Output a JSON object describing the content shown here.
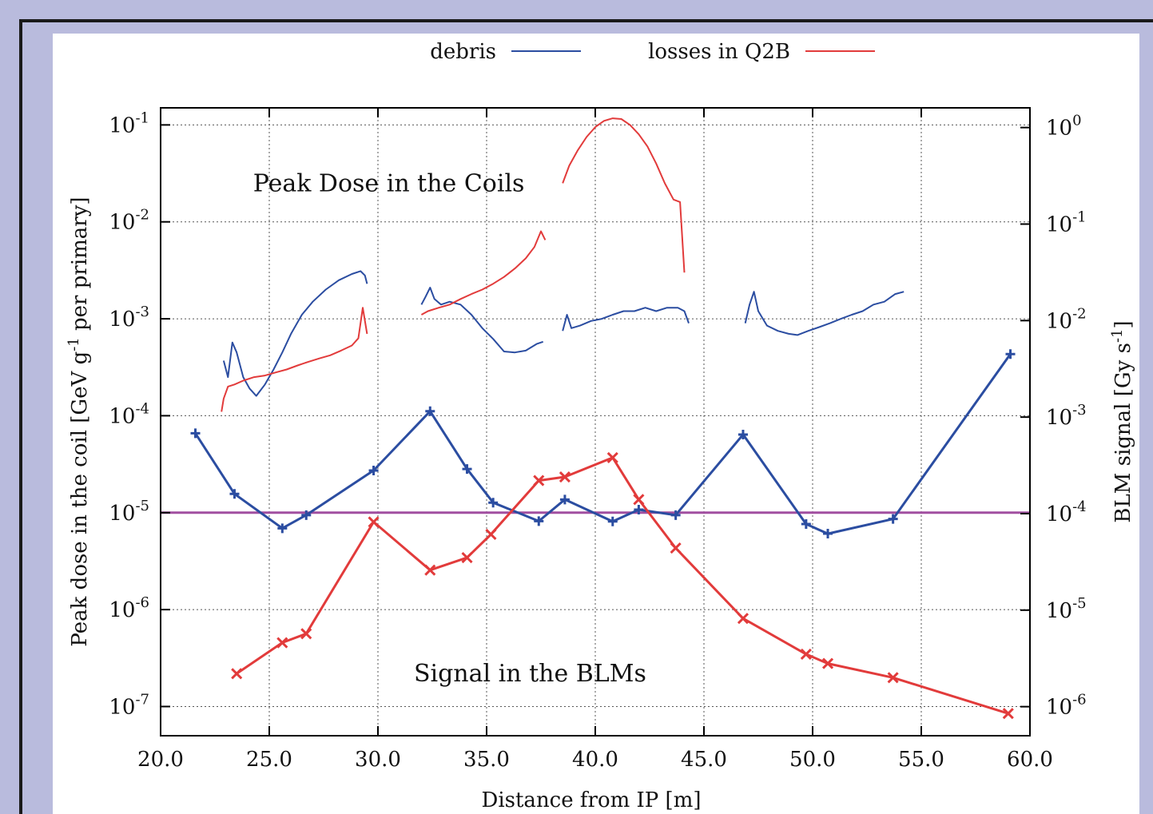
{
  "chart_data": {
    "type": "line",
    "xlabel": "Distance from IP [m]",
    "ylabel_left_text": "Peak dose in the coil [GeV g",
    "ylabel_left_sup": "-1",
    "ylabel_left_tail": " per primary]",
    "ylabel_right_text": "BLM signal [Gy s",
    "ylabel_right_sup": "-1",
    "ylabel_right_tail": "]",
    "xlim": [
      20.0,
      60.0
    ],
    "ylim_left": [
      5e-08,
      0.15
    ],
    "ylim_right": [
      5e-07,
      1.6
    ],
    "y_scale": "log",
    "grid": true,
    "legend": {
      "position": "top-center",
      "entries": [
        {
          "label": "debris",
          "color": "#2b4da1"
        },
        {
          "label": "losses in Q2B",
          "color": "#e23b3b"
        }
      ]
    },
    "x_ticks": [
      "20.0",
      "25.0",
      "30.0",
      "35.0",
      "40.0",
      "45.0",
      "50.0",
      "55.0",
      "60.0"
    ],
    "y_ticks_left": [
      {
        "base": "10",
        "exp": "-1",
        "value": 0.1
      },
      {
        "base": "10",
        "exp": "-2",
        "value": 0.01
      },
      {
        "base": "10",
        "exp": "-3",
        "value": 0.001
      },
      {
        "base": "10",
        "exp": "-4",
        "value": 0.0001
      },
      {
        "base": "10",
        "exp": "-5",
        "value": 1e-05
      },
      {
        "base": "10",
        "exp": "-6",
        "value": 1e-06
      },
      {
        "base": "10",
        "exp": "-7",
        "value": 1e-07
      }
    ],
    "y_ticks_right": [
      {
        "base": "10",
        "exp": "0",
        "value": 1
      },
      {
        "base": "10",
        "exp": "-1",
        "value": 0.1
      },
      {
        "base": "10",
        "exp": "-2",
        "value": 0.01
      },
      {
        "base": "10",
        "exp": "-3",
        "value": 0.001
      },
      {
        "base": "10",
        "exp": "-4",
        "value": 0.0001
      },
      {
        "base": "10",
        "exp": "-5",
        "value": 1e-05
      },
      {
        "base": "10",
        "exp": "-6",
        "value": 1e-06
      }
    ],
    "annotations": [
      {
        "text": "Peak Dose in the Coils",
        "x": 30.5,
        "y": 0.025
      },
      {
        "text": "Signal in the BLMs",
        "x": 37.0,
        "y": 2.2e-07
      }
    ],
    "threshold": {
      "value": 1e-05,
      "color": "#a14fa0"
    },
    "series": [
      {
        "name": "debris",
        "axis": "left",
        "kind": "coil",
        "color": "#2b4da1",
        "segments": [
          [
            [
              22.9,
              0.00037
            ],
            [
              23.1,
              0.00025
            ],
            [
              23.3,
              0.00057
            ],
            [
              23.5,
              0.00045
            ],
            [
              23.8,
              0.00025
            ],
            [
              24.1,
              0.00019
            ],
            [
              24.4,
              0.00016
            ],
            [
              24.8,
              0.00021
            ],
            [
              25.2,
              0.0003
            ],
            [
              25.6,
              0.00045
            ],
            [
              26.0,
              0.0007
            ],
            [
              26.5,
              0.0011
            ],
            [
              27.0,
              0.0015
            ],
            [
              27.6,
              0.002
            ],
            [
              28.2,
              0.0025
            ],
            [
              28.8,
              0.0029
            ],
            [
              29.2,
              0.0031
            ],
            [
              29.4,
              0.0028
            ],
            [
              29.5,
              0.0023
            ]
          ],
          [
            [
              32.0,
              0.0014
            ],
            [
              32.2,
              0.0017
            ],
            [
              32.4,
              0.0021
            ],
            [
              32.6,
              0.0016
            ],
            [
              32.9,
              0.0014
            ],
            [
              33.3,
              0.0015
            ],
            [
              33.8,
              0.0014
            ],
            [
              34.3,
              0.0011
            ],
            [
              34.8,
              0.0008
            ],
            [
              35.3,
              0.00062
            ],
            [
              35.8,
              0.00046
            ],
            [
              36.3,
              0.00045
            ],
            [
              36.8,
              0.00047
            ],
            [
              37.3,
              0.00055
            ],
            [
              37.6,
              0.00058
            ]
          ],
          [
            [
              38.5,
              0.00075
            ],
            [
              38.7,
              0.0011
            ],
            [
              38.9,
              0.0008
            ],
            [
              39.3,
              0.00085
            ],
            [
              39.8,
              0.00095
            ],
            [
              40.3,
              0.001
            ],
            [
              40.8,
              0.0011
            ],
            [
              41.3,
              0.0012
            ],
            [
              41.8,
              0.0012
            ],
            [
              42.3,
              0.0013
            ],
            [
              42.8,
              0.0012
            ],
            [
              43.3,
              0.0013
            ],
            [
              43.8,
              0.0013
            ],
            [
              44.1,
              0.0012
            ],
            [
              44.3,
              0.0009
            ]
          ],
          [
            [
              46.9,
              0.0009
            ],
            [
              47.1,
              0.0014
            ],
            [
              47.3,
              0.0019
            ],
            [
              47.5,
              0.0012
            ],
            [
              47.9,
              0.00085
            ],
            [
              48.4,
              0.00075
            ],
            [
              48.9,
              0.0007
            ],
            [
              49.3,
              0.00068
            ],
            [
              49.8,
              0.00075
            ],
            [
              50.3,
              0.00082
            ],
            [
              50.8,
              0.0009
            ],
            [
              51.3,
              0.001
            ],
            [
              51.8,
              0.0011
            ],
            [
              52.3,
              0.0012
            ],
            [
              52.8,
              0.0014
            ],
            [
              53.3,
              0.0015
            ],
            [
              53.8,
              0.0018
            ],
            [
              54.2,
              0.0019
            ]
          ]
        ]
      },
      {
        "name": "losses in Q2B",
        "axis": "left",
        "kind": "coil",
        "color": "#e23b3b",
        "segments": [
          [
            [
              22.8,
              0.00011
            ],
            [
              22.9,
              0.00015
            ],
            [
              23.1,
              0.0002
            ],
            [
              23.4,
              0.00021
            ],
            [
              23.8,
              0.00023
            ],
            [
              24.3,
              0.00025
            ],
            [
              24.8,
              0.00026
            ],
            [
              25.3,
              0.00028
            ],
            [
              25.8,
              0.0003
            ],
            [
              26.3,
              0.00033
            ],
            [
              26.8,
              0.00036
            ],
            [
              27.3,
              0.00039
            ],
            [
              27.8,
              0.00042
            ],
            [
              28.3,
              0.00047
            ],
            [
              28.8,
              0.00053
            ],
            [
              29.1,
              0.00063
            ],
            [
              29.3,
              0.0013
            ],
            [
              29.5,
              0.0007
            ]
          ],
          [
            [
              32.0,
              0.0011
            ],
            [
              32.3,
              0.0012
            ],
            [
              32.8,
              0.0013
            ],
            [
              33.3,
              0.0014
            ],
            [
              33.8,
              0.0016
            ],
            [
              34.3,
              0.0018
            ],
            [
              34.8,
              0.002
            ],
            [
              35.3,
              0.0023
            ],
            [
              35.8,
              0.0027
            ],
            [
              36.3,
              0.0033
            ],
            [
              36.8,
              0.0042
            ],
            [
              37.2,
              0.0055
            ],
            [
              37.5,
              0.008
            ],
            [
              37.7,
              0.0065
            ]
          ],
          [
            [
              38.5,
              0.025
            ],
            [
              38.8,
              0.038
            ],
            [
              39.2,
              0.055
            ],
            [
              39.6,
              0.075
            ],
            [
              40.0,
              0.095
            ],
            [
              40.4,
              0.11
            ],
            [
              40.8,
              0.117
            ],
            [
              41.2,
              0.115
            ],
            [
              41.6,
              0.1
            ],
            [
              42.0,
              0.08
            ],
            [
              42.4,
              0.06
            ],
            [
              42.8,
              0.04
            ],
            [
              43.2,
              0.025
            ],
            [
              43.6,
              0.017
            ],
            [
              43.9,
              0.016
            ],
            [
              44.1,
              0.003
            ]
          ]
        ]
      },
      {
        "name": "debris",
        "axis": "right",
        "kind": "blm",
        "color": "#2b4da1",
        "points": [
          [
            21.6,
            0.00068
          ],
          [
            23.4,
            0.00016
          ],
          [
            25.6,
            7.05e-05
          ],
          [
            26.7,
            9.65e-05
          ],
          [
            29.8,
            0.00028
          ],
          [
            32.4,
            0.00115
          ],
          [
            34.1,
            0.00029
          ],
          [
            35.3,
            0.00013
          ],
          [
            37.4,
            8.35e-05
          ],
          [
            38.6,
            0.00014
          ],
          [
            40.8,
            8.3e-05
          ],
          [
            42.0,
            0.00011
          ],
          [
            43.7,
            9.65e-05
          ],
          [
            46.8,
            0.00066
          ],
          [
            49.7,
            7.8e-05
          ],
          [
            50.7,
            6.2e-05
          ],
          [
            53.7,
            8.8e-05
          ],
          [
            59.1,
            0.0045
          ]
        ]
      },
      {
        "name": "losses in Q2B",
        "axis": "right",
        "kind": "blm",
        "color": "#e23b3b",
        "points": [
          [
            23.5,
            2.2e-06
          ],
          [
            25.6,
            4.6e-06
          ],
          [
            26.7,
            5.7e-06
          ],
          [
            29.8,
            8.2e-05
          ],
          [
            32.4,
            2.6e-05
          ],
          [
            34.1,
            3.5e-05
          ],
          [
            35.2,
            6.1e-05
          ],
          [
            37.4,
            0.00022
          ],
          [
            38.6,
            0.00024
          ],
          [
            40.8,
            0.00038
          ],
          [
            42.0,
            0.00014
          ],
          [
            43.7,
            4.4e-05
          ],
          [
            46.8,
            8.2e-06
          ],
          [
            49.7,
            3.5e-06
          ],
          [
            50.7,
            2.8e-06
          ],
          [
            53.7,
            2e-06
          ],
          [
            59.0,
            8.5e-07
          ]
        ]
      }
    ]
  }
}
